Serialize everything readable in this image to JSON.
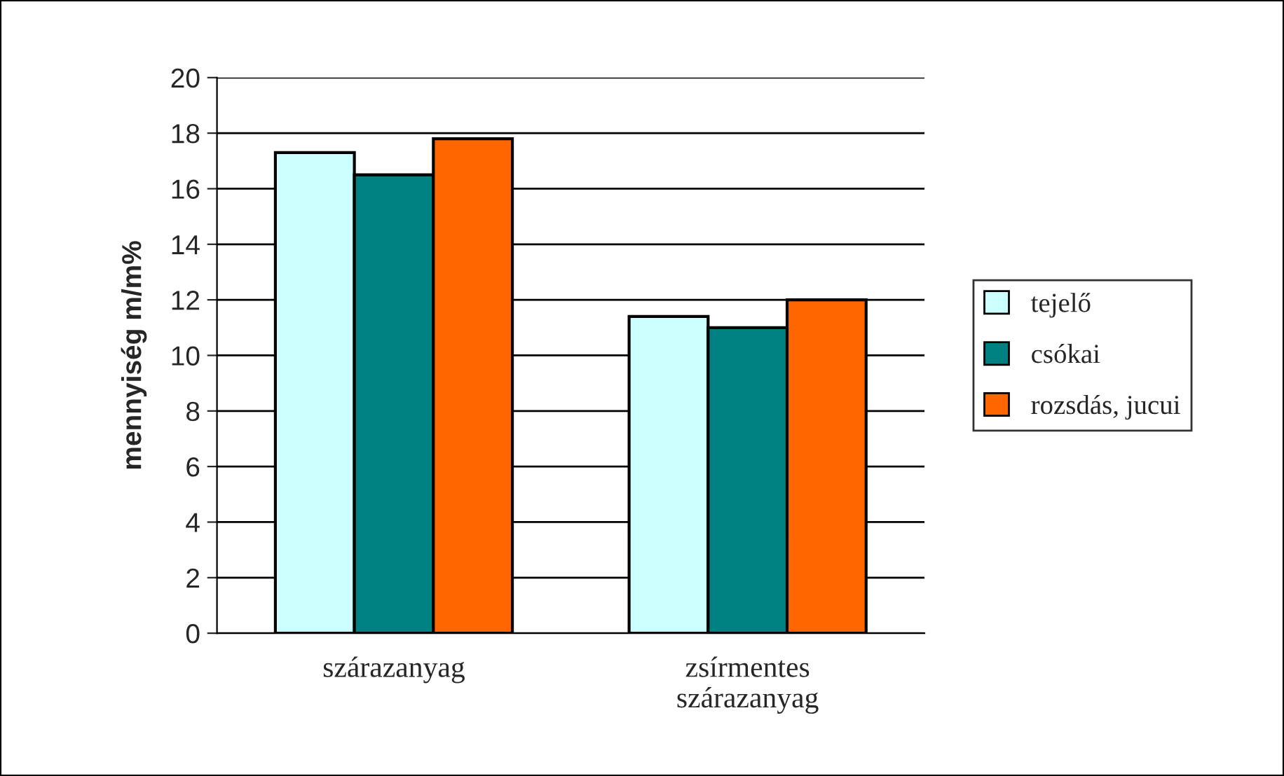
{
  "chart_data": {
    "type": "bar",
    "ylabel": "mennyiség m/m%",
    "categories": [
      "szárazanyag",
      "zsírmentes\nszárazanyag"
    ],
    "series": [
      {
        "name": "tejelő",
        "color": "#ccffff",
        "values": [
          17.3,
          11.4
        ]
      },
      {
        "name": "csókai",
        "color": "#008080",
        "values": [
          16.5,
          11.0
        ]
      },
      {
        "name": "rozsdás, jucui",
        "color": "#ff6600",
        "values": [
          17.8,
          12.0
        ]
      }
    ],
    "ylim": [
      0,
      20
    ],
    "yticks": [
      0,
      2,
      4,
      6,
      8,
      10,
      12,
      14,
      16,
      18,
      20
    ],
    "grid": "y",
    "legend": "right"
  }
}
